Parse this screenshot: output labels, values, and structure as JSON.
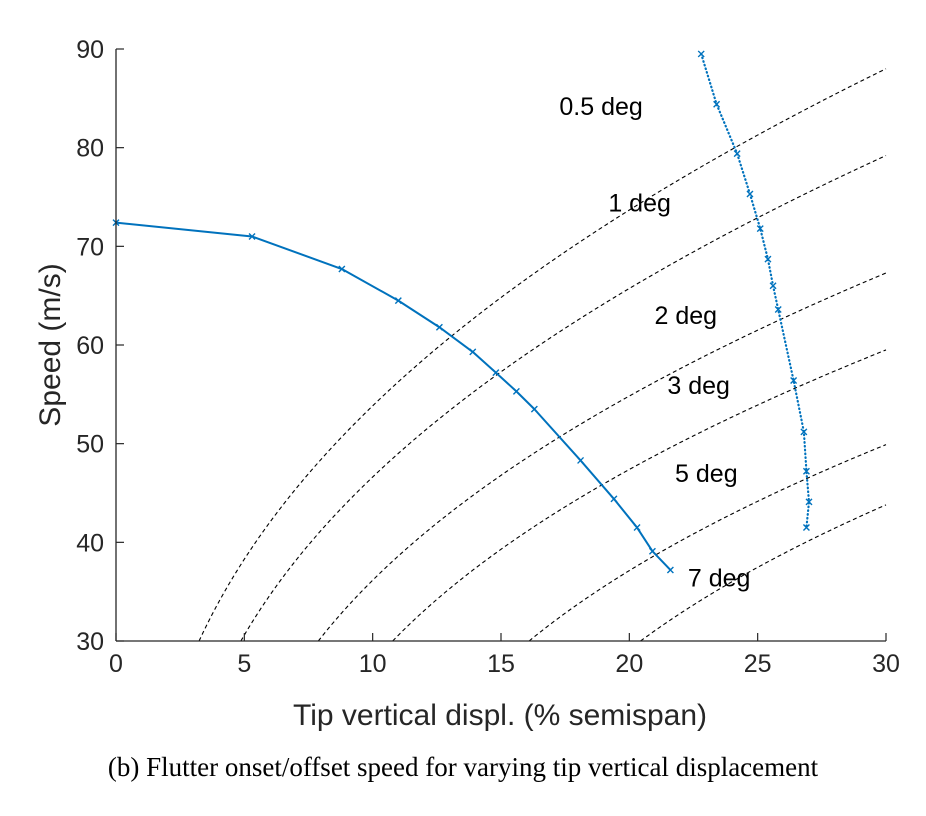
{
  "caption": "(b)  Flutter onset/offset speed for varying tip vertical displacement",
  "chart_data": {
    "type": "line",
    "xlabel": "Tip vertical displ. (% semispan)",
    "ylabel": "Speed (m/s)",
    "xlim": [
      0,
      30
    ],
    "ylim": [
      30,
      90
    ],
    "xticks": [
      0,
      5,
      10,
      15,
      20,
      25,
      30
    ],
    "yticks": [
      30,
      40,
      50,
      60,
      70,
      80,
      90
    ],
    "grid": false,
    "colors": {
      "series": "#0072BD",
      "reference": "#000000",
      "axes": "#262626"
    },
    "series": [
      {
        "style": "solid",
        "marker": "x",
        "points": [
          [
            0.0,
            72.4
          ],
          [
            5.3,
            71.0
          ],
          [
            8.8,
            67.7
          ],
          [
            11.0,
            64.5
          ],
          [
            12.6,
            61.8
          ],
          [
            13.9,
            59.3
          ],
          [
            14.8,
            57.2
          ],
          [
            15.6,
            55.3
          ],
          [
            16.3,
            53.5
          ],
          [
            18.1,
            48.3
          ],
          [
            19.4,
            44.4
          ],
          [
            20.3,
            41.5
          ],
          [
            20.9,
            39.1
          ],
          [
            21.6,
            37.2
          ]
        ]
      },
      {
        "style": "dotted",
        "marker": "x",
        "points": [
          [
            22.8,
            89.5
          ],
          [
            23.4,
            84.4
          ],
          [
            24.2,
            79.4
          ],
          [
            24.7,
            75.3
          ],
          [
            25.1,
            71.8
          ],
          [
            25.4,
            68.7
          ],
          [
            25.6,
            66.0
          ],
          [
            25.8,
            63.6
          ],
          [
            26.4,
            56.4
          ],
          [
            26.8,
            51.2
          ],
          [
            26.9,
            47.2
          ],
          [
            27.0,
            44.1
          ],
          [
            26.9,
            41.5
          ]
        ]
      }
    ],
    "reference_curves": [
      {
        "label": "0.5 deg",
        "x0": 1.0,
        "xend": 30,
        "y_at_xend": 88.0
      },
      {
        "label": "1 deg",
        "x0": 2.1,
        "xend": 30,
        "y_at_xend": 79.2
      },
      {
        "label": "2 deg",
        "x0": 4.1,
        "xend": 30,
        "y_at_xend": 67.3
      },
      {
        "label": "3 deg",
        "x0": 6.1,
        "xend": 30,
        "y_at_xend": 59.5
      },
      {
        "label": "5 deg",
        "x0": 10.2,
        "xend": 30,
        "y_at_xend": 49.9
      },
      {
        "label": "7 deg",
        "x0": 13.9,
        "xend": 30,
        "y_at_xend": 43.8
      }
    ],
    "annotations": [
      {
        "text": "0.5 deg",
        "x": 18.9,
        "y": 84.0
      },
      {
        "text": "1 deg",
        "x": 20.4,
        "y": 74.2
      },
      {
        "text": "2 deg",
        "x": 22.2,
        "y": 62.8
      },
      {
        "text": "3 deg",
        "x": 22.7,
        "y": 55.7
      },
      {
        "text": "5 deg",
        "x": 23.0,
        "y": 46.8
      },
      {
        "text": "7 deg",
        "x": 23.5,
        "y": 36.2
      }
    ]
  }
}
